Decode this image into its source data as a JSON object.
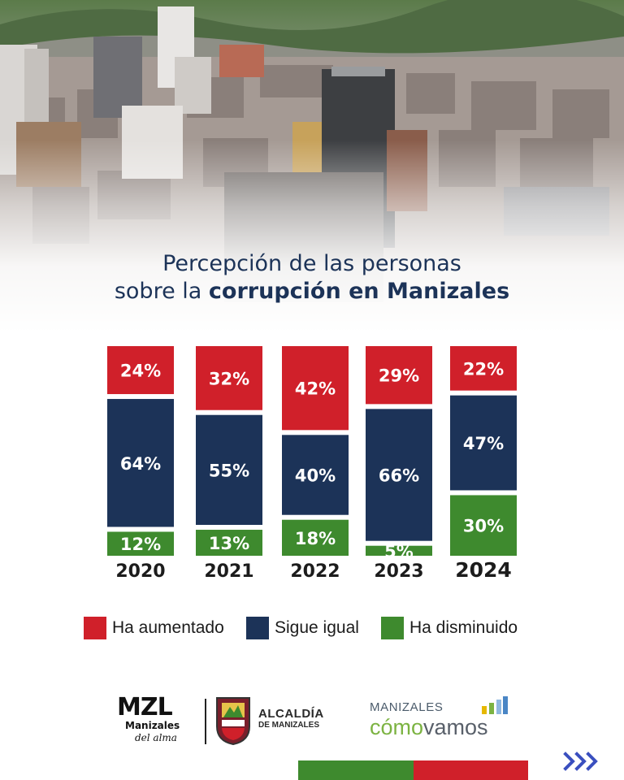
{
  "title": {
    "line1": "Percepción de las personas",
    "line2_prefix": "sobre la ",
    "line2_bold": "corrupción en Manizales"
  },
  "chart_data": {
    "type": "bar",
    "stacked": true,
    "normalized": true,
    "categories": [
      "2020",
      "2021",
      "2022",
      "2023",
      "2024"
    ],
    "series": [
      {
        "name": "Ha aumentado",
        "color": "#d0202a",
        "values": [
          24,
          32,
          42,
          29,
          22
        ]
      },
      {
        "name": "Sigue igual",
        "color": "#1c3358",
        "values": [
          64,
          55,
          40,
          66,
          47
        ]
      },
      {
        "name": "Ha disminuido",
        "color": "#3e8a2e",
        "values": [
          12,
          13,
          18,
          5,
          30
        ]
      }
    ],
    "value_suffix": "%",
    "legend_position": "bottom",
    "grid": false
  },
  "legend": [
    {
      "label": "Ha aumentado",
      "color": "#d0202a"
    },
    {
      "label": "Sigue igual",
      "color": "#1c3358"
    },
    {
      "label": "Ha disminuido",
      "color": "#3e8a2e"
    }
  ],
  "logos": {
    "mzl": {
      "big": "MZL",
      "mid": "Manizales",
      "script": "del alma"
    },
    "alcaldia": {
      "line1": "ALCALDÍA",
      "line2": "DE MANIZALES"
    },
    "manizales_como_vamos": {
      "line1": "MANIZALES",
      "como": "cómo",
      "vamos": "vamos"
    }
  },
  "icons": {
    "next": "triple-chevron-right-icon",
    "shield": "coat-of-arms-icon",
    "mini_bars": "bar-chart-icon"
  },
  "colors": {
    "navy": "#1c3358",
    "red": "#d0202a",
    "green": "#3e8a2e",
    "arrows": "#3a4fbf"
  }
}
